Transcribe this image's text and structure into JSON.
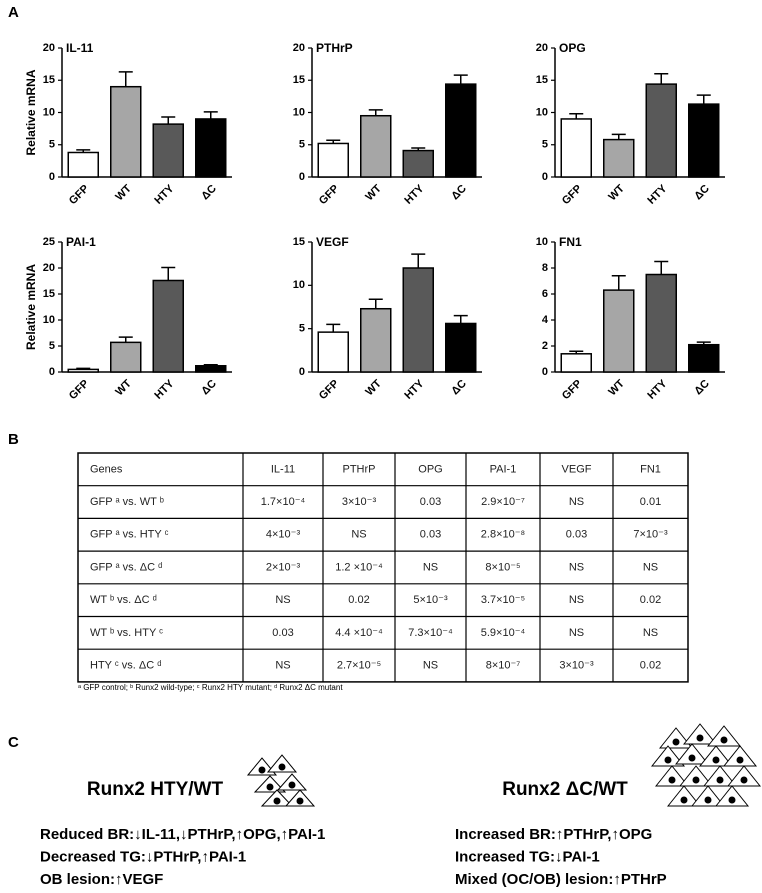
{
  "panel_labels": [
    "A",
    "B",
    "C"
  ],
  "chart_data": [
    {
      "type": "bar",
      "title": "IL-11",
      "ylabel": "Relative mRNA",
      "categories": [
        "GFP",
        "WT",
        "HTY",
        "ΔC"
      ],
      "values": [
        3.8,
        14,
        8.2,
        9
      ],
      "errors": [
        0.4,
        2.3,
        1.1,
        1.1
      ],
      "colors": [
        "#ffffff",
        "#a6a6a6",
        "#595959",
        "#000000"
      ],
      "ylim": [
        0,
        20
      ],
      "yticks": [
        0,
        5,
        10,
        15,
        20
      ]
    },
    {
      "type": "bar",
      "title": "PTHrP",
      "categories": [
        "GFP",
        "WT",
        "HTY",
        "ΔC"
      ],
      "values": [
        5.2,
        9.5,
        4.1,
        14.4
      ],
      "errors": [
        0.5,
        0.9,
        0.4,
        1.4
      ],
      "colors": [
        "#ffffff",
        "#a6a6a6",
        "#595959",
        "#000000"
      ],
      "ylim": [
        0,
        20
      ],
      "yticks": [
        0,
        5,
        10,
        15,
        20
      ]
    },
    {
      "type": "bar",
      "title": "OPG",
      "categories": [
        "GFP",
        "WT",
        "HTY",
        "ΔC"
      ],
      "values": [
        9,
        5.8,
        14.4,
        11.3
      ],
      "errors": [
        0.8,
        0.8,
        1.6,
        1.4
      ],
      "colors": [
        "#ffffff",
        "#a6a6a6",
        "#595959",
        "#000000"
      ],
      "ylim": [
        0,
        20
      ],
      "yticks": [
        0,
        5,
        10,
        15,
        20
      ]
    },
    {
      "type": "bar",
      "title": "PAI-1",
      "ylabel": "Relative mRNA",
      "categories": [
        "GFP",
        "WT",
        "HTY",
        "ΔC"
      ],
      "values": [
        0.5,
        5.7,
        17.6,
        1.2
      ],
      "errors": [
        0.2,
        1,
        2.5,
        0.2
      ],
      "colors": [
        "#ffffff",
        "#a6a6a6",
        "#595959",
        "#000000"
      ],
      "ylim": [
        0,
        25
      ],
      "yticks": [
        0,
        5,
        10,
        15,
        20,
        25
      ]
    },
    {
      "type": "bar",
      "title": "VEGF",
      "categories": [
        "GFP",
        "WT",
        "HTY",
        "ΔC"
      ],
      "values": [
        4.6,
        7.3,
        12,
        5.6
      ],
      "errors": [
        0.9,
        1.1,
        1.6,
        0.9
      ],
      "colors": [
        "#ffffff",
        "#a6a6a6",
        "#595959",
        "#000000"
      ],
      "ylim": [
        0,
        15
      ],
      "yticks": [
        0,
        5,
        10,
        15
      ]
    },
    {
      "type": "bar",
      "title": "FN1",
      "categories": [
        "GFP",
        "WT",
        "HTY",
        "ΔC"
      ],
      "values": [
        1.4,
        6.3,
        7.5,
        2.1
      ],
      "errors": [
        0.2,
        1.1,
        1,
        0.2
      ],
      "colors": [
        "#ffffff",
        "#a6a6a6",
        "#595959",
        "#000000"
      ],
      "ylim": [
        0,
        10
      ],
      "yticks": [
        0,
        2,
        4,
        6,
        8,
        10
      ]
    }
  ],
  "table": {
    "header": [
      "Genes",
      "IL-11",
      "PTHrP",
      "OPG",
      "PAI-1",
      "VEGF",
      "FN1"
    ],
    "rows": [
      [
        "GFP ᵃ vs. WT ᵇ",
        "1.7×10⁻⁴",
        "3×10⁻³",
        "0.03",
        "2.9×10⁻⁷",
        "NS",
        "0.01"
      ],
      [
        "GFP ᵃ vs. HTY ᶜ",
        "4×10⁻³",
        "NS",
        "0.03",
        "2.8×10⁻⁸",
        "0.03",
        "7×10⁻³"
      ],
      [
        "GFP ᵃ vs. ΔC ᵈ",
        "2×10⁻³",
        "1.2 ×10⁻⁴",
        "NS",
        "8×10⁻⁵",
        "NS",
        "NS"
      ],
      [
        "WT ᵇ vs. ΔC ᵈ",
        "NS",
        "0.02",
        "5×10⁻³",
        "3.7×10⁻⁵",
        "NS",
        "0.02"
      ],
      [
        "WT ᵇ vs. HTY ᶜ",
        "0.03",
        "4.4 ×10⁻⁴",
        "7.3×10⁻⁴",
        "5.9×10⁻⁴",
        "NS",
        "NS"
      ],
      [
        "HTY ᶜ vs. ΔC ᵈ",
        "NS",
        "2.7×10⁻⁵",
        "NS",
        "8×10⁻⁷",
        "3×10⁻³",
        "0.02"
      ]
    ],
    "footnote": "ᵃ GFP control; ᵇ Runx2 wild-type; ᶜ Runx2 HTY mutant; ᵈ Runx2 ΔC mutant"
  },
  "panel_c": {
    "left": {
      "title": "Runx2 HTY/WT",
      "lines": [
        "Reduced BR:↓IL-11,↓PTHrP,↑OPG,↑PAI-1",
        "Decreased TG:↓PTHrP,↑PAI-1",
        "OB lesion:↑VEGF"
      ]
    },
    "right": {
      "title": "Runx2 ΔC/WT",
      "lines": [
        "Increased BR:↑PTHrP,↑OPG",
        "Increased TG:↓PAI-1",
        "Mixed (OC/OB) lesion:↑PTHrP"
      ]
    }
  }
}
